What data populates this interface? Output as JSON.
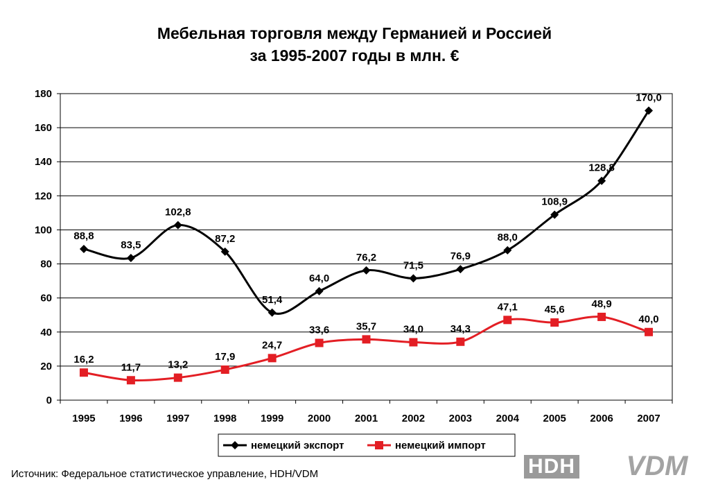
{
  "title": {
    "line1": "Мебельная торговля между Германией и Россией",
    "line2": "за 1995-2007 годы в млн. €"
  },
  "source": "Источник: Федеральное статистическое управление, HDH/VDM",
  "logos": {
    "hdh": "HDH",
    "vdm": "VDM"
  },
  "chart_data": {
    "type": "line",
    "categories": [
      "1995",
      "1996",
      "1997",
      "1998",
      "1999",
      "2000",
      "2001",
      "2002",
      "2003",
      "2004",
      "2005",
      "2006",
      "2007"
    ],
    "ylim": [
      0,
      180
    ],
    "yticks": [
      0,
      20,
      40,
      60,
      80,
      100,
      120,
      140,
      160,
      180
    ],
    "grid": true,
    "legend_position": "bottom",
    "series": [
      {
        "name": "немецкий экспорт",
        "color": "#000000",
        "marker": "diamond",
        "values": [
          88.8,
          83.5,
          102.8,
          87.2,
          51.4,
          64.0,
          76.2,
          71.5,
          76.9,
          88.0,
          108.9,
          128.8,
          170.0
        ],
        "labels": [
          "88,8",
          "83,5",
          "102,8",
          "87,2",
          "51,4",
          "64,0",
          "76,2",
          "71,5",
          "76,9",
          "88,0",
          "108,9",
          "128,8",
          "170,0"
        ]
      },
      {
        "name": "немецкий импорт",
        "color": "#e31e24",
        "marker": "square",
        "values": [
          16.2,
          11.7,
          13.2,
          17.9,
          24.7,
          33.6,
          35.7,
          34.0,
          34.3,
          47.1,
          45.6,
          48.9,
          40.0
        ],
        "labels": [
          "16,2",
          "11,7",
          "13,2",
          "17,9",
          "24,7",
          "33,6",
          "35,7",
          "34,0",
          "34,3",
          "47,1",
          "45,6",
          "48,9",
          "40,0"
        ]
      }
    ]
  }
}
